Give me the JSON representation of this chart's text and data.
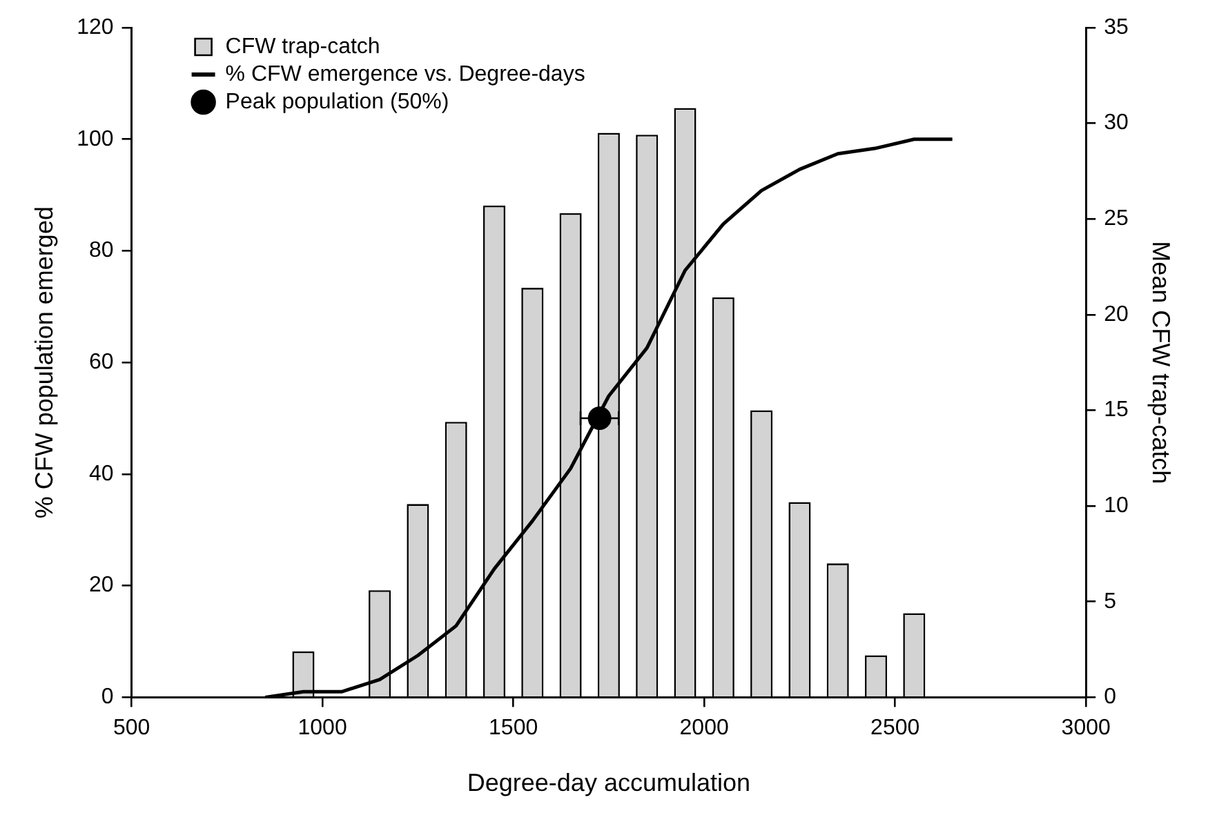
{
  "chart_data": {
    "type": "bar",
    "xlabel": "Degree-day accumulation",
    "ylabel": "% CFW population emerged",
    "y2label": "Mean CFW trap-catch",
    "xlim": [
      500,
      3000
    ],
    "xticks": [
      500,
      1000,
      1500,
      2000,
      2500,
      3000
    ],
    "ylim": [
      0,
      120
    ],
    "yticks": [
      0,
      20,
      40,
      60,
      80,
      100,
      120
    ],
    "y2lim": [
      0,
      35
    ],
    "y2ticks": [
      0,
      5,
      10,
      15,
      20,
      25,
      30,
      35
    ],
    "legend": "top left",
    "series": [
      {
        "name": "CFW trap-catch",
        "axis": "y2",
        "color": "#d3d3d3",
        "x": [
          950,
          1150,
          1250,
          1350,
          1450,
          1550,
          1650,
          1750,
          1850,
          1950,
          2050,
          2150,
          2250,
          2350,
          2450,
          2550
        ],
        "values": [
          2.4,
          5.6,
          10.1,
          14.4,
          25.7,
          21.4,
          25.3,
          29.5,
          29.4,
          30.8,
          20.9,
          15.0,
          10.2,
          7.0,
          2.2,
          4.4
        ]
      },
      {
        "name": "% CFW emergence vs. Degree-days",
        "type": "line",
        "marker": "none",
        "color": "#000000",
        "x": [
          850,
          950,
          1050,
          1150,
          1250,
          1350,
          1450,
          1550,
          1650,
          1750,
          1850,
          1950,
          2050,
          2150,
          2250,
          2350,
          2450,
          2550,
          2650
        ],
        "values": [
          0,
          1,
          1,
          3.2,
          7.5,
          12.8,
          23,
          31.6,
          41,
          54,
          62.6,
          76.5,
          84.8,
          90.8,
          94.6,
          97.4,
          98.4,
          100,
          100
        ]
      },
      {
        "name": "Peak population (50%)",
        "type": "scatter",
        "marker": "circle",
        "color": "#000000",
        "x": [
          1726
        ],
        "values": [
          50
        ],
        "xerrors": [
          50
        ]
      }
    ]
  }
}
